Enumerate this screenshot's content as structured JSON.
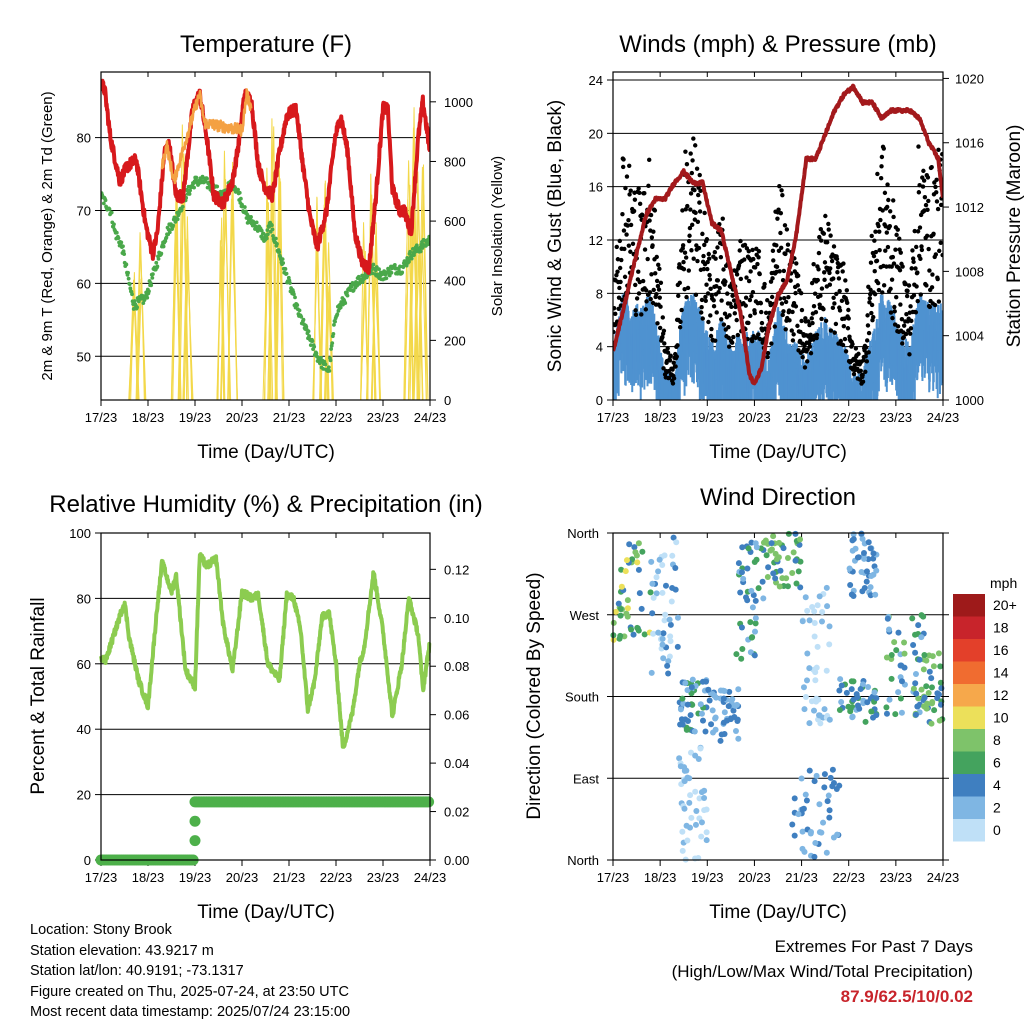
{
  "x_ticks": [
    "17/23",
    "18/23",
    "19/23",
    "20/23",
    "21/23",
    "22/23",
    "23/23",
    "24/23"
  ],
  "chart_data": [
    {
      "type": "line",
      "title": "Temperature (F)",
      "xlabel": "Time (Day/UTC)",
      "ylabel": "2m & 9m T (Red, Orange) & 2m Td (Green)",
      "y2label": "Solar Insolation (Yellow)",
      "ylim": [
        44,
        89
      ],
      "y_ticks": [
        "50",
        "60",
        "70",
        "80"
      ],
      "y_tick_values": [
        50,
        60,
        70,
        80
      ],
      "y2lim": [
        0,
        1100
      ],
      "y2_ticks": [
        "0",
        "200",
        "400",
        "600",
        "800",
        "1000"
      ],
      "y2_tick_values": [
        0,
        200,
        400,
        600,
        800,
        1000
      ],
      "x_days": [
        0,
        7
      ],
      "series": [
        {
          "color": "#d7191c",
          "axis": "left",
          "x": [
            0,
            0.08,
            0.2,
            0.4,
            0.55,
            0.75,
            0.95,
            1.1,
            1.2,
            1.35,
            1.45,
            1.6,
            1.75,
            1.95,
            2.1,
            2.25,
            2.4,
            2.6,
            2.8,
            2.95,
            3.05,
            3.2,
            3.35,
            3.5,
            3.65,
            3.8,
            3.95,
            4.15,
            4.3,
            4.45,
            4.6,
            4.8,
            4.98,
            5.1,
            5.25,
            5.4,
            5.55,
            5.7,
            5.85,
            6.0,
            6.1,
            6.2,
            6.35,
            6.45,
            6.6,
            6.75,
            6.85,
            7.0
          ],
          "y": [
            87.5,
            86.5,
            80,
            74,
            76,
            77,
            68,
            64,
            67,
            78,
            79,
            72,
            72,
            84,
            86,
            80,
            72,
            71,
            74,
            80,
            86,
            85,
            76,
            73,
            72,
            78,
            83,
            84,
            76,
            69,
            65,
            70,
            80,
            83,
            78,
            67,
            63,
            62,
            72,
            84,
            84,
            73,
            70,
            70,
            67,
            80,
            85,
            78
          ]
        },
        {
          "color": "#f4a143",
          "axis": "left",
          "x": [
            1.3,
            1.4,
            1.55,
            2.0,
            2.1,
            2.2,
            3.0,
            3.1,
            3.2
          ],
          "y": [
            76,
            79,
            74,
            84,
            86,
            82,
            81,
            86,
            84
          ]
        },
        {
          "color": "#4aa84a",
          "axis": "left",
          "x": [
            0,
            0.2,
            0.3,
            0.45,
            0.6,
            0.7,
            0.95,
            1.2,
            1.4,
            1.6,
            1.8,
            2.0,
            2.2,
            2.4,
            2.6,
            2.8,
            2.95,
            3.1,
            3.3,
            3.5,
            3.6,
            3.8,
            4.0,
            4.2,
            4.4,
            4.6,
            4.7,
            4.85,
            5.0,
            5.2,
            5.4,
            5.6,
            5.8,
            6.0,
            6.2,
            6.4,
            6.6,
            6.8,
            7.0
          ],
          "y": [
            72,
            70,
            67,
            65,
            60,
            57,
            58,
            63,
            67,
            69,
            72,
            74,
            74,
            73,
            72,
            74,
            72,
            69,
            68,
            66,
            68,
            64,
            60,
            56,
            53,
            50,
            49,
            48,
            56,
            58,
            60,
            61,
            62,
            61,
            62,
            62,
            64,
            65,
            66
          ]
        },
        {
          "color": "#f3d84a",
          "axis": "right",
          "peak_days": [
            0.7,
            0.85,
            1.6,
            1.75,
            1.85,
            2.55,
            2.65,
            2.8,
            3.55,
            3.65,
            3.8,
            4.6,
            4.75,
            4.85,
            5.6,
            5.75,
            5.85,
            6.55,
            6.65,
            6.75,
            6.85
          ],
          "peak_values": [
            450,
            600,
            900,
            1050,
            700,
            750,
            950,
            800,
            800,
            1000,
            850,
            780,
            900,
            600,
            600,
            850,
            700,
            950,
            1000,
            800,
            850
          ]
        }
      ]
    },
    {
      "type": "scatter",
      "title": "Winds (mph) & Pressure (mb)",
      "xlabel": "Time (Day/UTC)",
      "ylabel": "Sonic Wind & Gust (Blue, Black)",
      "y2label": "Station Pressure (Maroon)",
      "ylim": [
        0,
        24.6
      ],
      "y_ticks": [
        "0",
        "4",
        "8",
        "12",
        "16",
        "20",
        "24"
      ],
      "y_tick_values": [
        0,
        4,
        8,
        12,
        16,
        20,
        24
      ],
      "y2lim": [
        1000,
        1020.4
      ],
      "y2_ticks": [
        "1000",
        "1004",
        "1008",
        "1012",
        "1016",
        "1020"
      ],
      "y2_tick_values": [
        1000,
        1004,
        1008,
        1012,
        1016,
        1020
      ],
      "x_days": [
        0,
        7
      ],
      "gust_envelope": {
        "x": [
          0,
          0.2,
          0.4,
          0.6,
          0.8,
          0.95,
          1.1,
          1.3,
          1.5,
          1.7,
          1.9,
          2.1,
          2.3,
          2.5,
          2.7,
          2.9,
          3.1,
          3.3,
          3.5,
          3.7,
          3.9,
          4.1,
          4.3,
          4.5,
          4.7,
          4.9,
          5.1,
          5.3,
          5.5,
          5.7,
          5.9,
          6.1,
          6.3,
          6.5,
          6.7,
          6.9,
          7.0
        ],
        "y": [
          5,
          14,
          12,
          11,
          13,
          9,
          3,
          2,
          13,
          14,
          11,
          7,
          10,
          6,
          9,
          8,
          8,
          5,
          12,
          9,
          7,
          4,
          8,
          10,
          8,
          7,
          3,
          2,
          9,
          14,
          11,
          8,
          6,
          14,
          12,
          13,
          13
        ]
      },
      "wind_envelope": {
        "x": [
          0,
          0.2,
          0.4,
          0.6,
          0.8,
          0.95,
          1.1,
          1.3,
          1.5,
          1.7,
          1.9,
          2.1,
          2.3,
          2.5,
          2.7,
          2.9,
          3.1,
          3.3,
          3.5,
          3.7,
          3.9,
          4.1,
          4.3,
          4.5,
          4.7,
          4.9,
          5.1,
          5.3,
          5.5,
          5.7,
          5.9,
          6.1,
          6.3,
          6.5,
          6.7,
          6.9,
          7.0
        ],
        "y": [
          3,
          7,
          6,
          6,
          7,
          4,
          1,
          1,
          6,
          7,
          5,
          3,
          5,
          3,
          4,
          4,
          4,
          2,
          6,
          4,
          3,
          2,
          4,
          5,
          4,
          3,
          1,
          1,
          4,
          7,
          6,
          4,
          3,
          7,
          6,
          6,
          6
        ]
      },
      "pressure": {
        "x": [
          0,
          0.25,
          0.45,
          0.7,
          0.9,
          1.1,
          1.3,
          1.5,
          1.7,
          1.9,
          2.1,
          2.3,
          2.5,
          2.7,
          2.9,
          3.0,
          3.15,
          3.3,
          3.5,
          3.7,
          3.9,
          4.1,
          4.3,
          4.5,
          4.7,
          4.9,
          5.1,
          5.3,
          5.5,
          5.7,
          5.9,
          6.1,
          6.3,
          6.5,
          6.7,
          6.9,
          7.0
        ],
        "y": [
          1003,
          1006,
          1008.5,
          1011.5,
          1012.5,
          1012.5,
          1013.5,
          1014.2,
          1013.5,
          1013.5,
          1011,
          1010.5,
          1008,
          1005.5,
          1001.5,
          1001,
          1002,
          1004.5,
          1006.5,
          1007.5,
          1010.5,
          1015,
          1015,
          1016.5,
          1018,
          1019,
          1019.5,
          1018.5,
          1018.5,
          1017.5,
          1018,
          1018,
          1018,
          1017.5,
          1016,
          1015,
          1012.5
        ]
      }
    },
    {
      "type": "line",
      "title": "Relative Humidity (%) & Precipitation (in)",
      "xlabel": "Time (Day/UTC)",
      "ylabel": "Percent & Total Rainfall",
      "ylim": [
        0,
        100
      ],
      "y_ticks": [
        "0",
        "20",
        "40",
        "60",
        "80",
        "100"
      ],
      "y_tick_values": [
        0,
        20,
        40,
        60,
        80,
        100
      ],
      "y2lim": [
        0,
        0.135
      ],
      "y2_ticks": [
        "0.00",
        "0.02",
        "0.04",
        "0.06",
        "0.08",
        "0.10",
        "0.12"
      ],
      "y2_tick_values": [
        0,
        0.02,
        0.04,
        0.06,
        0.08,
        0.1,
        0.12
      ],
      "x_days": [
        0,
        7
      ],
      "series": [
        {
          "name": "",
          "color": "#8ccc50",
          "axis": "left",
          "x": [
            0,
            0.1,
            0.3,
            0.5,
            0.6,
            0.8,
            1.0,
            1.2,
            1.3,
            1.5,
            1.6,
            1.8,
            2.0,
            2.1,
            2.25,
            2.45,
            2.6,
            2.8,
            3.0,
            3.2,
            3.35,
            3.55,
            3.8,
            3.95,
            4.1,
            4.25,
            4.4,
            4.55,
            4.7,
            4.85,
            5.0,
            5.15,
            5.35,
            5.5,
            5.6,
            5.8,
            6.0,
            6.2,
            6.4,
            6.55,
            6.75,
            6.85,
            7.0
          ],
          "y": [
            62,
            61,
            70,
            79,
            68,
            55,
            47,
            78,
            91,
            82,
            87,
            58,
            53,
            93,
            90,
            92,
            72,
            58,
            82,
            80,
            81,
            60,
            55,
            81,
            80,
            70,
            46,
            55,
            74,
            76,
            60,
            34,
            45,
            60,
            65,
            88,
            70,
            44,
            60,
            80,
            69,
            52,
            67
          ]
        },
        {
          "name": "",
          "color": "#4db04a",
          "axis": "right",
          "step": true,
          "x": [
            0,
            2.0,
            2.0,
            7.0
          ],
          "y": [
            0,
            0,
            0.024,
            0.024
          ]
        }
      ]
    },
    {
      "type": "scatter",
      "title": "Wind Direction",
      "xlabel": "Time (Day/UTC)",
      "ylabel": "Direction (Colored By Speed)",
      "y_ticks": [
        "North",
        "West",
        "South",
        "East",
        "North"
      ],
      "y_tick_values": [
        360,
        270,
        180,
        90,
        0
      ],
      "ylim": [
        0,
        360
      ],
      "x_days": [
        0,
        7
      ],
      "legend": {
        "title": "mph",
        "placement": "right",
        "labels": [
          "20+",
          "18",
          "16",
          "14",
          "12",
          "10",
          "8",
          "6",
          "4",
          "2",
          "0"
        ],
        "colors": [
          "#9e1a1a",
          "#c8242b",
          "#e3402a",
          "#f06c30",
          "#f6a84b",
          "#ece05a",
          "#7ec36a",
          "#44a35e",
          "#3f7fc0",
          "#7fb6e3",
          "#bfe0f7"
        ]
      },
      "clusters": [
        {
          "x": [
            0,
            0.8
          ],
          "y": [
            240,
            350
          ],
          "speeds": [
            4,
            6,
            8,
            10
          ]
        },
        {
          "x": [
            0.8,
            1.4
          ],
          "y": [
            200,
            360
          ],
          "speeds": [
            0,
            2,
            4
          ]
        },
        {
          "x": [
            1.4,
            2.0
          ],
          "y": [
            140,
            200
          ],
          "speeds": [
            2,
            4,
            6
          ]
        },
        {
          "x": [
            1.4,
            2.0
          ],
          "y": [
            0,
            130
          ],
          "speeds": [
            0,
            2
          ]
        },
        {
          "x": [
            2.0,
            2.8
          ],
          "y": [
            130,
            190
          ],
          "speeds": [
            2,
            4
          ]
        },
        {
          "x": [
            2.6,
            3.2
          ],
          "y": [
            220,
            350
          ],
          "speeds": [
            2,
            4,
            6
          ]
        },
        {
          "x": [
            3.2,
            4.0
          ],
          "y": [
            300,
            360
          ],
          "speeds": [
            4,
            6,
            8
          ]
        },
        {
          "x": [
            3.8,
            4.8
          ],
          "y": [
            0,
            100
          ],
          "speeds": [
            2,
            4
          ]
        },
        {
          "x": [
            4.0,
            4.6
          ],
          "y": [
            150,
            300
          ],
          "speeds": [
            0,
            2
          ]
        },
        {
          "x": [
            4.8,
            5.6
          ],
          "y": [
            150,
            200
          ],
          "speeds": [
            2,
            4,
            6
          ]
        },
        {
          "x": [
            5.0,
            5.6
          ],
          "y": [
            290,
            360
          ],
          "speeds": [
            2,
            4
          ]
        },
        {
          "x": [
            5.8,
            6.6
          ],
          "y": [
            160,
            270
          ],
          "speeds": [
            2,
            4,
            6,
            8
          ]
        },
        {
          "x": [
            6.4,
            7.0
          ],
          "y": [
            150,
            230
          ],
          "speeds": [
            4,
            6,
            8
          ]
        }
      ]
    }
  ],
  "info": {
    "location": "Location: Stony Brook",
    "elevation": "Station elevation: 43.9217 m",
    "latlon": "Station lat/lon: 40.9191; -73.1317",
    "created": "Figure created on Thu, 2025-07-24, at 23:50 UTC",
    "recent": "Most recent data timestamp: 2025/07/24 23:15:00"
  },
  "extremes": {
    "title": "Extremes For Past 7 Days",
    "subtitle": "(High/Low/Max Wind/Total Precipitation)",
    "values": "87.9/62.5/10/0.02"
  }
}
